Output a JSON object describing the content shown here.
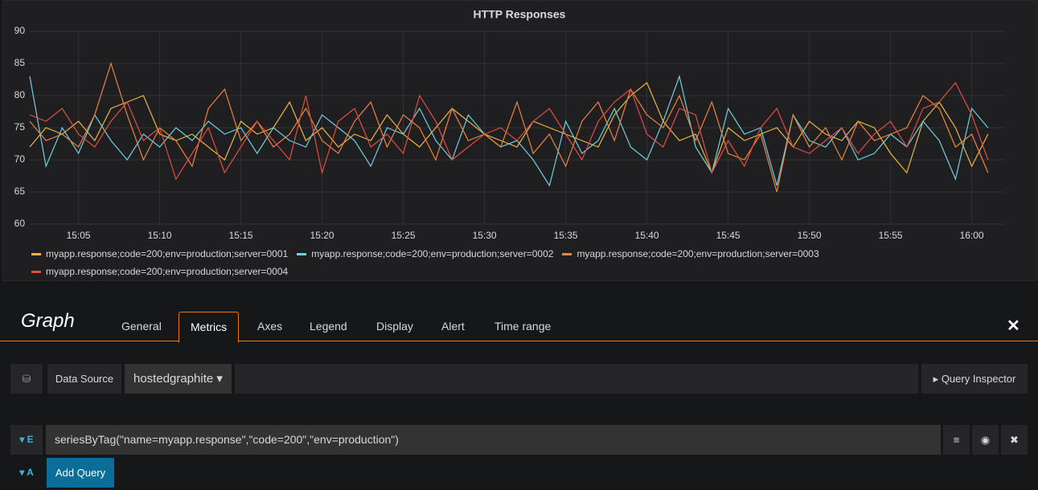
{
  "chart_data": {
    "type": "line",
    "title": "HTTP Responses",
    "x": [
      "15:02",
      "15:03",
      "15:04",
      "15:05",
      "15:06",
      "15:07",
      "15:08",
      "15:09",
      "15:10",
      "15:11",
      "15:12",
      "15:13",
      "15:14",
      "15:15",
      "15:16",
      "15:17",
      "15:18",
      "15:19",
      "15:20",
      "15:21",
      "15:22",
      "15:23",
      "15:24",
      "15:25",
      "15:26",
      "15:27",
      "15:28",
      "15:29",
      "15:30",
      "15:31",
      "15:32",
      "15:33",
      "15:34",
      "15:35",
      "15:36",
      "15:37",
      "15:38",
      "15:39",
      "15:40",
      "15:41",
      "15:42",
      "15:43",
      "15:44",
      "15:45",
      "15:46",
      "15:47",
      "15:48",
      "15:49",
      "15:50",
      "15:51",
      "15:52",
      "15:53",
      "15:54",
      "15:55",
      "15:56",
      "15:57",
      "15:58",
      "15:59",
      "16:00",
      "16:01"
    ],
    "series": [
      {
        "name": "myapp.response;code=200;env=production;server=0001",
        "color": "#eab839",
        "values": [
          72,
          75,
          74,
          76,
          73,
          78,
          79,
          80,
          74,
          73,
          74,
          72,
          70,
          76,
          74,
          75,
          79,
          73,
          75,
          72,
          74,
          73,
          77,
          74,
          72,
          75,
          78,
          76,
          74,
          73,
          72,
          76,
          75,
          74,
          73,
          72,
          77,
          80,
          82,
          76,
          73,
          74,
          68,
          75,
          73,
          74,
          75,
          72,
          76,
          74,
          73,
          76,
          75,
          71,
          68,
          76,
          79,
          75,
          69,
          74
        ]
      },
      {
        "name": "myapp.response;code=200;env=production;server=0002",
        "color": "#6ed0e0",
        "values": [
          83,
          69,
          75,
          71,
          77,
          73,
          70,
          74,
          72,
          75,
          73,
          76,
          74,
          75,
          71,
          75,
          73,
          72,
          77,
          75,
          73,
          69,
          75,
          74,
          78,
          73,
          70,
          77,
          74,
          72,
          73,
          70,
          66,
          76,
          71,
          73,
          78,
          72,
          70,
          76,
          83,
          72,
          68,
          78,
          74,
          75,
          66,
          77,
          73,
          72,
          75,
          70,
          71,
          74,
          72,
          76,
          73,
          67,
          78,
          75
        ]
      },
      {
        "name": "myapp.response;code=200;env=production;server=0003",
        "color": "#ef843c",
        "values": [
          76,
          73,
          74,
          72,
          77,
          85,
          77,
          70,
          75,
          73,
          69,
          78,
          81,
          73,
          76,
          72,
          74,
          78,
          73,
          71,
          76,
          79,
          72,
          77,
          75,
          70,
          78,
          73,
          74,
          72,
          79,
          71,
          74,
          69,
          76,
          79,
          73,
          81,
          77,
          75,
          80,
          73,
          79,
          71,
          70,
          74,
          65,
          77,
          72,
          75,
          70,
          76,
          73,
          74,
          75,
          80,
          78,
          72,
          74,
          68
        ]
      },
      {
        "name": "myapp.response;code=200;env=production;server=0004",
        "color": "#e24d42",
        "values": [
          77,
          76,
          78,
          74,
          72,
          76,
          79,
          73,
          75,
          67,
          71,
          75,
          68,
          72,
          76,
          73,
          70,
          80,
          68,
          76,
          78,
          72,
          74,
          71,
          80,
          76,
          70,
          72,
          74,
          75,
          73,
          76,
          78,
          74,
          70,
          76,
          79,
          81,
          74,
          72,
          78,
          77,
          68,
          73,
          69,
          75,
          78,
          72,
          71,
          73,
          75,
          71,
          74,
          76,
          72,
          78,
          79,
          82,
          77,
          70
        ]
      }
    ],
    "xlim": [
      "15:02",
      "16:02"
    ],
    "xticks": [
      "15:05",
      "15:10",
      "15:15",
      "15:20",
      "15:25",
      "15:30",
      "15:35",
      "15:40",
      "15:45",
      "15:50",
      "15:55",
      "16:00"
    ],
    "ylim": [
      60,
      90
    ],
    "yticks": [
      60,
      65,
      70,
      75,
      80,
      85,
      90
    ],
    "grid": true
  },
  "editor": {
    "title": "Graph",
    "tabs": [
      "General",
      "Metrics",
      "Axes",
      "Legend",
      "Display",
      "Alert",
      "Time range"
    ],
    "active_tab": 1,
    "datasource_label": "Data Source",
    "datasource": "hostedgraphite",
    "inspector": "Query Inspector",
    "queries": [
      {
        "letter": "E",
        "text": "seriesByTag(\"name=myapp.response\",\"code=200\",\"env=production\")"
      }
    ],
    "add_letter": "A",
    "add_button": "Add Query"
  }
}
